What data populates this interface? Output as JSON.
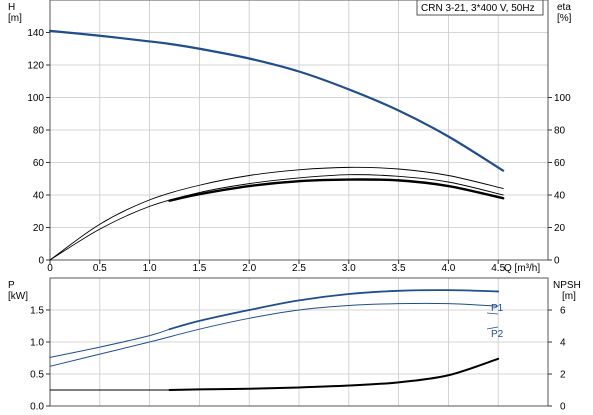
{
  "window": {
    "badge": "CRN 3-21, 3*400 V, 50Hz"
  },
  "top_chart": {
    "left_axis_label": [
      "H",
      "[m]"
    ],
    "right_axis_label": [
      "eta",
      "[%]"
    ],
    "x_label": "Q [m³/h]"
  },
  "bottom_chart": {
    "left_axis_label": [
      "P",
      "[kW]"
    ],
    "right_axis_label": [
      "NPSH",
      "[m]"
    ],
    "series_tags": [
      "P1",
      "P2"
    ]
  },
  "chart_data": [
    {
      "type": "line",
      "title": "",
      "xlabel": "Q [m³/h]",
      "ylabel": "H [m]",
      "y2label": "eta [%]",
      "xlim": [
        0,
        5
      ],
      "x_ticks": [
        "0",
        "0.5",
        "1.0",
        "1.5",
        "2.0",
        "2.5",
        "3.0",
        "3.5",
        "4.0",
        "4.5"
      ],
      "ylim": [
        0,
        160
      ],
      "y_ticks": [
        "0",
        "20",
        "40",
        "60",
        "80",
        "100",
        "120",
        "140"
      ],
      "y2lim": [
        0,
        160
      ],
      "y2_ticks": [
        "0",
        "20",
        "40",
        "60",
        "80",
        "100"
      ],
      "grid": true,
      "series": [
        {
          "name": "H",
          "axis": "left",
          "color": "#1f4e8c",
          "x": [
            0,
            0.5,
            1.0,
            1.2,
            1.5,
            2.0,
            2.5,
            3.0,
            3.5,
            4.0,
            4.55
          ],
          "values": [
            141,
            138,
            134.5,
            133,
            130,
            124,
            116,
            105,
            92,
            76,
            55
          ]
        },
        {
          "name": "eta (thin upper)",
          "axis": "right",
          "color": "#000000",
          "x": [
            0,
            0.5,
            1.0,
            1.5,
            2.0,
            2.5,
            3.0,
            3.5,
            4.0,
            4.55
          ],
          "values": [
            0,
            22,
            37,
            46,
            52,
            55.5,
            57,
            56,
            52,
            44
          ]
        },
        {
          "name": "eta (thin lower)",
          "axis": "right",
          "color": "#000000",
          "x": [
            0,
            0.5,
            1.0,
            1.5,
            2.0,
            2.5,
            3.0,
            3.5,
            4.0,
            4.55
          ],
          "values": [
            0,
            19,
            33,
            41.5,
            47,
            50.5,
            52.5,
            51.5,
            48,
            40
          ]
        },
        {
          "name": "eta (thick)",
          "axis": "right",
          "color": "#000000",
          "x": [
            1.2,
            1.5,
            2.0,
            2.5,
            3.0,
            3.5,
            4.0,
            4.55
          ],
          "values": [
            36.5,
            40.5,
            45.5,
            48.5,
            49.5,
            49,
            45.5,
            38
          ]
        }
      ]
    },
    {
      "type": "line",
      "title": "",
      "xlabel": "",
      "ylabel": "P [kW]",
      "y2label": "NPSH [m]",
      "xlim": [
        0,
        5
      ],
      "ylim": [
        0,
        2.0
      ],
      "y_ticks": [
        "0.0",
        "0.5",
        "1.0",
        "1.5"
      ],
      "y2lim": [
        0,
        8
      ],
      "y2_ticks": [
        "0",
        "2",
        "4",
        "6"
      ],
      "grid": true,
      "series": [
        {
          "name": "P1",
          "axis": "left",
          "color": "#1f4e8c",
          "x": [
            0,
            0.5,
            1.0,
            1.2,
            1.5,
            2.0,
            2.5,
            3.0,
            3.5,
            4.0,
            4.5
          ],
          "values": [
            0.76,
            0.92,
            1.1,
            1.2,
            1.33,
            1.5,
            1.65,
            1.75,
            1.8,
            1.81,
            1.79
          ]
        },
        {
          "name": "P2",
          "axis": "left",
          "color": "#1f4e8c",
          "x": [
            0,
            0.5,
            1.0,
            1.5,
            2.0,
            2.5,
            3.0,
            3.5,
            4.0,
            4.5
          ],
          "values": [
            0.62,
            0.81,
            1.0,
            1.2,
            1.37,
            1.5,
            1.57,
            1.6,
            1.6,
            1.56
          ]
        },
        {
          "name": "NPSH",
          "axis": "right",
          "color": "#000000",
          "x": [
            0,
            0.5,
            1.0,
            1.2,
            1.5,
            2.0,
            2.5,
            3.0,
            3.5,
            4.0,
            4.5
          ],
          "values": [
            1.0,
            1.0,
            1.0,
            1.0,
            1.04,
            1.08,
            1.16,
            1.28,
            1.48,
            1.92,
            2.95
          ]
        }
      ]
    }
  ]
}
